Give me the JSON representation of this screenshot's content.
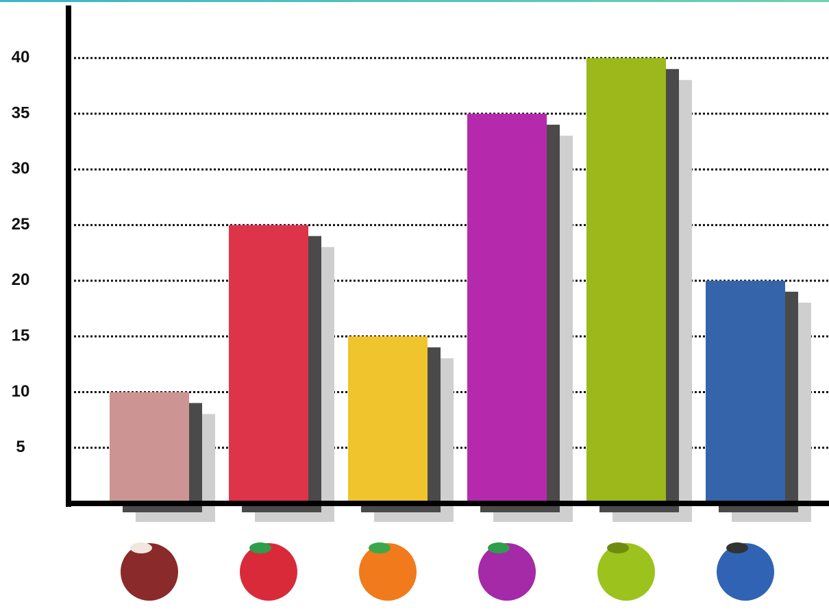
{
  "chart_data": {
    "type": "bar",
    "categories": [
      null,
      null,
      null,
      null,
      null,
      null
    ],
    "values": [
      10,
      25,
      15,
      35,
      40,
      20
    ],
    "colors": [
      "#cc9594",
      "#de344a",
      "#f0c42c",
      "#b52aac",
      "#9cb81a",
      "#3564ab"
    ],
    "ylim": [
      0,
      44.6
    ],
    "yticks": [
      5,
      10,
      15,
      20,
      25,
      30,
      35,
      40
    ],
    "grid": true
  }
}
